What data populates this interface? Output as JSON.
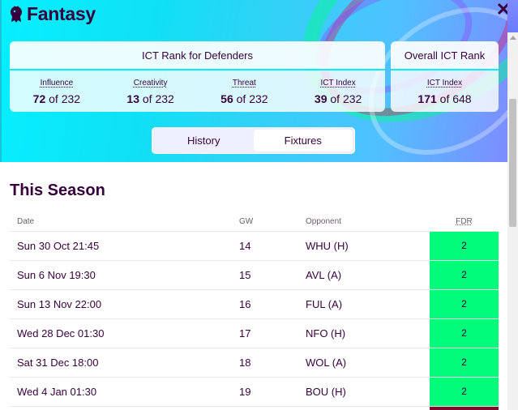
{
  "app": {
    "brand": "Fantasy"
  },
  "header": {
    "close_symbol": "✕"
  },
  "cards": {
    "left": {
      "title": "ICT Rank for Defenders",
      "stats": [
        {
          "label": "Influence",
          "rank": "72",
          "of": "of 232"
        },
        {
          "label": "Creativity",
          "rank": "13",
          "of": "of 232"
        },
        {
          "label": "Threat",
          "rank": "56",
          "of": "of 232"
        },
        {
          "label": "ICT Index",
          "rank": "39",
          "of": "of 232"
        }
      ]
    },
    "right": {
      "title": "Overall ICT Rank",
      "stats": [
        {
          "label": "ICT Index",
          "rank": "171",
          "of": "of 648"
        }
      ]
    }
  },
  "tabs": [
    {
      "label": "History",
      "active": false
    },
    {
      "label": "Fixtures",
      "active": true
    }
  ],
  "section": {
    "title": "This Season"
  },
  "table": {
    "headers": {
      "date": "Date",
      "gw": "GW",
      "opponent": "Opponent",
      "fdr": "FDR"
    },
    "rows": [
      {
        "date": "Sun 30 Oct 21:45",
        "gw": "14",
        "opponent": "WHU (H)",
        "fdr": "2"
      },
      {
        "date": "Sun 6 Nov 19:30",
        "gw": "15",
        "opponent": "AVL (A)",
        "fdr": "2"
      },
      {
        "date": "Sun 13 Nov 22:00",
        "gw": "16",
        "opponent": "FUL (A)",
        "fdr": "2"
      },
      {
        "date": "Wed 28 Dec 01:30",
        "gw": "17",
        "opponent": "NFO (H)",
        "fdr": "2"
      },
      {
        "date": "Sat 31 Dec 18:00",
        "gw": "18",
        "opponent": "WOL (A)",
        "fdr": "2"
      },
      {
        "date": "Wed 4 Jan 01:30",
        "gw": "19",
        "opponent": "BOU (H)",
        "fdr": "2"
      }
    ]
  },
  "colors": {
    "primary": "#37003c",
    "fdr_2": "#01fc7a",
    "fdr_next": "#80072d",
    "accent_cyan": "#05f0ff"
  }
}
